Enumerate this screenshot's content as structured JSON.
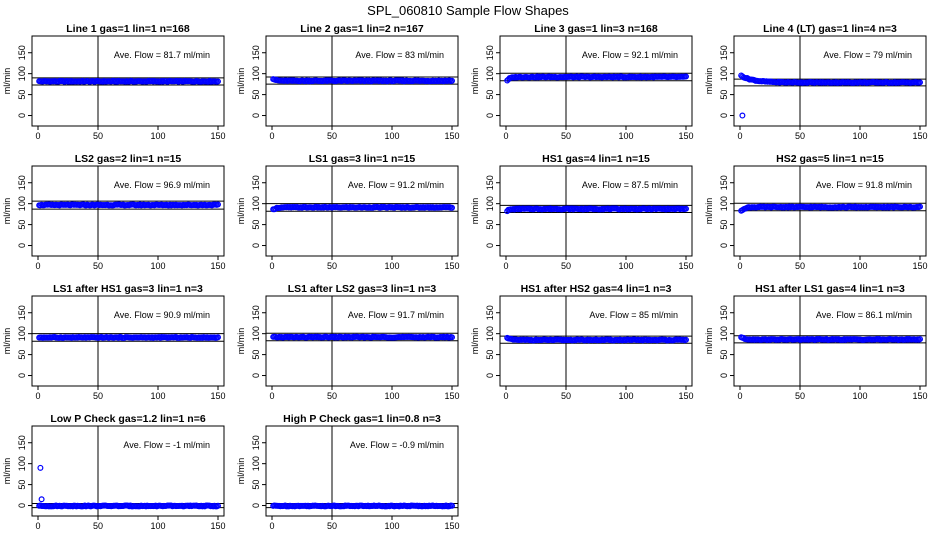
{
  "figure": {
    "title": "SPL_060810  Sample Flow Shapes"
  },
  "colors": {
    "points": "#0000ff",
    "axes": "#000000",
    "background": "#ffffff"
  },
  "chart_data": [
    {
      "type": "scatter",
      "title": "Line 1 gas=1 lin=1 n=168",
      "ylabel": "ml/min",
      "annotation": "Ave. Flow =  81.7  ml/min",
      "mean": 81.7,
      "xlim": [
        0,
        150
      ],
      "ylim": [
        -25,
        190
      ],
      "xticks": [
        "0",
        "50",
        "100",
        "150"
      ],
      "yticks": [
        "0",
        "50",
        "100",
        "150"
      ],
      "vline_x": 50,
      "hlines": [
        73,
        90
      ],
      "series": [
        {
          "shape": "flat",
          "level": 81.7
        }
      ]
    },
    {
      "type": "scatter",
      "title": "Line 2 gas=1 lin=2 n=167",
      "ylabel": "ml/min",
      "annotation": "Ave. Flow =  83  ml/min",
      "mean": 83,
      "xlim": [
        0,
        150
      ],
      "ylim": [
        -25,
        190
      ],
      "xticks": [
        "0",
        "50",
        "100",
        "150"
      ],
      "yticks": [
        "0",
        "50",
        "100",
        "150"
      ],
      "vline_x": 50,
      "hlines": [
        75,
        92
      ],
      "series": [
        {
          "shape": "flat",
          "level": 83,
          "start": 88
        }
      ]
    },
    {
      "type": "scatter",
      "title": "Line 3 gas=1 lin=3 n=168",
      "ylabel": "ml/min",
      "annotation": "Ave. Flow =  92.1  ml/min",
      "mean": 92.1,
      "xlim": [
        0,
        150
      ],
      "ylim": [
        -25,
        190
      ],
      "xticks": [
        "0",
        "50",
        "100",
        "150"
      ],
      "yticks": [
        "0",
        "50",
        "100",
        "150"
      ],
      "vline_x": 50,
      "hlines": [
        83,
        101
      ],
      "series": [
        {
          "shape": "flat",
          "level": 92.1,
          "start": 84
        }
      ]
    },
    {
      "type": "scatter",
      "title": "Line 4 (LT) gas=1 lin=4 n=3",
      "ylabel": "ml/min",
      "annotation": "Ave. Flow =  79  ml/min",
      "mean": 79,
      "xlim": [
        0,
        150
      ],
      "ylim": [
        -25,
        190
      ],
      "xticks": [
        "0",
        "50",
        "100",
        "150"
      ],
      "yticks": [
        "0",
        "50",
        "100",
        "150"
      ],
      "vline_x": 50,
      "hlines": [
        71,
        87
      ],
      "series": [
        {
          "shape": "decay",
          "level": 79,
          "start": 95,
          "outlier": [
            2,
            0
          ]
        }
      ]
    },
    {
      "type": "scatter",
      "title": "LS2 gas=2 lin=1 n=15",
      "ylabel": "ml/min",
      "annotation": "Ave. Flow =  96.9  ml/min",
      "mean": 96.9,
      "xlim": [
        0,
        150
      ],
      "ylim": [
        -25,
        190
      ],
      "xticks": [
        "0",
        "50",
        "100",
        "150"
      ],
      "yticks": [
        "0",
        "50",
        "100",
        "150"
      ],
      "vline_x": 50,
      "hlines": [
        87,
        106
      ],
      "series": [
        {
          "shape": "flat",
          "level": 96.9
        }
      ]
    },
    {
      "type": "scatter",
      "title": "LS1 gas=3 lin=1 n=15",
      "ylabel": "ml/min",
      "annotation": "Ave. Flow =  91.2  ml/min",
      "mean": 91.2,
      "xlim": [
        0,
        150
      ],
      "ylim": [
        -25,
        190
      ],
      "xticks": [
        "0",
        "50",
        "100",
        "150"
      ],
      "yticks": [
        "0",
        "50",
        "100",
        "150"
      ],
      "vline_x": 50,
      "hlines": [
        82,
        100
      ],
      "series": [
        {
          "shape": "flat",
          "level": 91.2,
          "start": 86
        }
      ]
    },
    {
      "type": "scatter",
      "title": "HS1 gas=4 lin=1 n=15",
      "ylabel": "ml/min",
      "annotation": "Ave. Flow =  87.5  ml/min",
      "mean": 87.5,
      "xlim": [
        0,
        150
      ],
      "ylim": [
        -25,
        190
      ],
      "xticks": [
        "0",
        "50",
        "100",
        "150"
      ],
      "yticks": [
        "0",
        "50",
        "100",
        "150"
      ],
      "vline_x": 50,
      "hlines": [
        79,
        96
      ],
      "series": [
        {
          "shape": "flat",
          "level": 87.5,
          "start": 83
        }
      ]
    },
    {
      "type": "scatter",
      "title": "HS2 gas=5 lin=1 n=15",
      "ylabel": "ml/min",
      "annotation": "Ave. Flow =  91.8  ml/min",
      "mean": 91.8,
      "xlim": [
        0,
        150
      ],
      "ylim": [
        -25,
        190
      ],
      "xticks": [
        "0",
        "50",
        "100",
        "150"
      ],
      "yticks": [
        "0",
        "50",
        "100",
        "150"
      ],
      "vline_x": 50,
      "hlines": [
        83,
        101
      ],
      "series": [
        {
          "shape": "flat",
          "level": 91.8,
          "start": 82
        }
      ]
    },
    {
      "type": "scatter",
      "title": "LS1 after HS1 gas=3 lin=1 n=3",
      "ylabel": "ml/min",
      "annotation": "Ave. Flow =  90.9  ml/min",
      "mean": 90.9,
      "xlim": [
        0,
        150
      ],
      "ylim": [
        -25,
        190
      ],
      "xticks": [
        "0",
        "50",
        "100",
        "150"
      ],
      "yticks": [
        "0",
        "50",
        "100",
        "150"
      ],
      "vline_x": 50,
      "hlines": [
        82,
        100
      ],
      "series": [
        {
          "shape": "flat",
          "level": 90.9
        }
      ]
    },
    {
      "type": "scatter",
      "title": "LS1 after LS2 gas=3 lin=1 n=3",
      "ylabel": "ml/min",
      "annotation": "Ave. Flow =  91.7  ml/min",
      "mean": 91.7,
      "xlim": [
        0,
        150
      ],
      "ylim": [
        -25,
        190
      ],
      "xticks": [
        "0",
        "50",
        "100",
        "150"
      ],
      "yticks": [
        "0",
        "50",
        "100",
        "150"
      ],
      "vline_x": 50,
      "hlines": [
        83,
        101
      ],
      "series": [
        {
          "shape": "flat",
          "level": 91.7
        }
      ]
    },
    {
      "type": "scatter",
      "title": "HS1 after HS2 gas=4 lin=1 n=3",
      "ylabel": "ml/min",
      "annotation": "Ave. Flow =  85  ml/min",
      "mean": 85,
      "xlim": [
        0,
        150
      ],
      "ylim": [
        -25,
        190
      ],
      "xticks": [
        "0",
        "50",
        "100",
        "150"
      ],
      "yticks": [
        "0",
        "50",
        "100",
        "150"
      ],
      "vline_x": 50,
      "hlines": [
        77,
        94
      ],
      "series": [
        {
          "shape": "flat",
          "level": 85,
          "start": 91
        }
      ]
    },
    {
      "type": "scatter",
      "title": "HS1 after LS1 gas=4 lin=1 n=3",
      "ylabel": "ml/min",
      "annotation": "Ave. Flow =  86.1  ml/min",
      "mean": 86.1,
      "xlim": [
        0,
        150
      ],
      "ylim": [
        -25,
        190
      ],
      "xticks": [
        "0",
        "50",
        "100",
        "150"
      ],
      "yticks": [
        "0",
        "50",
        "100",
        "150"
      ],
      "vline_x": 50,
      "hlines": [
        78,
        95
      ],
      "series": [
        {
          "shape": "flat",
          "level": 86.1,
          "start": 92
        }
      ]
    },
    {
      "type": "scatter",
      "title": "Low P Check gas=1.2 lin=1 n=6",
      "ylabel": "ml/min",
      "annotation": "Ave. Flow =  -1  ml/min",
      "mean": -1,
      "xlim": [
        0,
        150
      ],
      "ylim": [
        -25,
        190
      ],
      "xticks": [
        "0",
        "50",
        "100",
        "150"
      ],
      "yticks": [
        "0",
        "50",
        "100",
        "150"
      ],
      "vline_x": 50,
      "hlines": [
        -5,
        5
      ],
      "series": [
        {
          "shape": "spike",
          "level": -1,
          "outlier": [
            2,
            90
          ],
          "second": [
            3,
            15
          ]
        }
      ]
    },
    {
      "type": "scatter",
      "title": "High P Check gas=1 lin=0.8 n=3",
      "ylabel": "ml/min",
      "annotation": "Ave. Flow =  -0.9  ml/min",
      "mean": -0.9,
      "xlim": [
        0,
        150
      ],
      "ylim": [
        -25,
        190
      ],
      "xticks": [
        "0",
        "50",
        "100",
        "150"
      ],
      "yticks": [
        "0",
        "50",
        "100",
        "150"
      ],
      "vline_x": 50,
      "hlines": [
        -5,
        5
      ],
      "series": [
        {
          "shape": "flat",
          "level": -0.9
        }
      ]
    }
  ]
}
